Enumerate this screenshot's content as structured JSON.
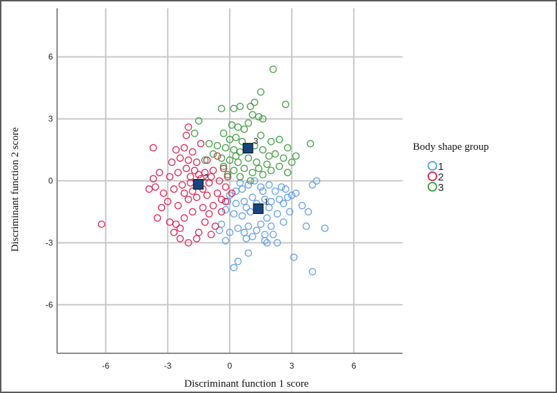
{
  "chart_data": {
    "type": "scatter",
    "xlabel": "Discriminant function 1 score",
    "ylabel": "Discriminant function 2 score",
    "xlim": [
      -8.35,
      8.35
    ],
    "ylim": [
      -8.35,
      8.35
    ],
    "xticks": [
      -6,
      -3,
      0,
      3,
      6
    ],
    "yticks": [
      -6,
      -3,
      0,
      3,
      6
    ],
    "grid": true,
    "legend": {
      "title": "Body shape group",
      "placement": "right"
    },
    "series": [
      {
        "name": "1",
        "color": "#5b9be8",
        "marker": "open-circle",
        "points": [
          [
            4.0,
            -4.4
          ],
          [
            0.2,
            -4.2
          ],
          [
            0.4,
            -3.9
          ],
          [
            3.1,
            -3.7
          ],
          [
            0.9,
            -3.5
          ],
          [
            4.6,
            -2.3
          ],
          [
            3.8,
            -1.5
          ],
          [
            4.2,
            0.0
          ],
          [
            4.0,
            -0.2
          ],
          [
            3.2,
            -0.6
          ],
          [
            3.0,
            -0.7
          ],
          [
            2.7,
            -0.4
          ],
          [
            2.5,
            -0.3
          ],
          [
            2.2,
            -0.5
          ],
          [
            1.9,
            -0.2
          ],
          [
            1.5,
            -0.3
          ],
          [
            1.2,
            0.0
          ],
          [
            0.9,
            -0.2
          ],
          [
            0.6,
            -0.4
          ],
          [
            0.3,
            -0.5
          ],
          [
            0.0,
            -0.7
          ],
          [
            2.6,
            -1.1
          ],
          [
            2.4,
            -0.9
          ],
          [
            2.0,
            -1.0
          ],
          [
            1.7,
            -0.9
          ],
          [
            1.1,
            -0.8
          ],
          [
            0.7,
            -1.0
          ],
          [
            0.3,
            -1.1
          ],
          [
            -0.1,
            -1.0
          ],
          [
            3.5,
            -1.2
          ],
          [
            2.9,
            -1.5
          ],
          [
            2.3,
            -1.6
          ],
          [
            1.8,
            -1.8
          ],
          [
            1.0,
            -1.5
          ],
          [
            0.6,
            -1.7
          ],
          [
            0.2,
            -1.6
          ],
          [
            -0.2,
            -1.4
          ],
          [
            2.6,
            -2.0
          ],
          [
            2.0,
            -2.2
          ],
          [
            1.5,
            -2.1
          ],
          [
            0.9,
            -2.2
          ],
          [
            0.4,
            -2.3
          ],
          [
            -0.4,
            -2.1
          ],
          [
            2.1,
            -2.6
          ],
          [
            1.7,
            -2.6
          ],
          [
            1.1,
            -2.7
          ],
          [
            0.7,
            -2.5
          ],
          [
            0.0,
            -2.5
          ],
          [
            2.3,
            -3.0
          ],
          [
            1.8,
            -3.0
          ],
          [
            1.7,
            -2.9
          ],
          [
            0.8,
            -2.8
          ],
          [
            -0.2,
            -2.9
          ],
          [
            1.3,
            -2.4
          ],
          [
            1.6,
            -0.5
          ],
          [
            2.8,
            -0.8
          ],
          [
            0.5,
            -0.1
          ],
          [
            1.3,
            -1.1
          ],
          [
            1.9,
            -1.3
          ],
          [
            0.8,
            -1.3
          ],
          [
            3.7,
            -2.2
          ],
          [
            -0.5,
            -2.4
          ]
        ],
        "centroid": [
          1.38,
          -1.35
        ]
      },
      {
        "name": "2",
        "color": "#e0194a",
        "marker": "open-circle",
        "points": [
          [
            -6.2,
            -2.1
          ],
          [
            -3.7,
            1.6
          ],
          [
            -3.4,
            0.4
          ],
          [
            -3.6,
            -0.3
          ],
          [
            -3.9,
            -0.4
          ],
          [
            -3.2,
            -0.6
          ],
          [
            -3.0,
            -1.0
          ],
          [
            -3.3,
            -1.3
          ],
          [
            -2.9,
            -2.0
          ],
          [
            -3.5,
            -1.8
          ],
          [
            -2.7,
            -2.5
          ],
          [
            -2.4,
            -2.8
          ],
          [
            -2.0,
            -3.0
          ],
          [
            -1.5,
            -2.5
          ],
          [
            -0.9,
            -2.6
          ],
          [
            -0.7,
            -2.2
          ],
          [
            -1.2,
            -2.0
          ],
          [
            -2.2,
            -1.8
          ],
          [
            -1.8,
            -1.5
          ],
          [
            -1.3,
            -1.3
          ],
          [
            -0.8,
            -1.2
          ],
          [
            -0.4,
            -1.5
          ],
          [
            -2.5,
            -1.2
          ],
          [
            -2.0,
            -0.9
          ],
          [
            -1.6,
            -0.8
          ],
          [
            -1.1,
            -0.7
          ],
          [
            -0.6,
            -0.6
          ],
          [
            -0.2,
            -0.3
          ],
          [
            -2.7,
            -0.4
          ],
          [
            -2.3,
            -0.2
          ],
          [
            -1.9,
            -0.1
          ],
          [
            -1.4,
            0.1
          ],
          [
            -1.0,
            -0.1
          ],
          [
            -0.5,
            0.0
          ],
          [
            -0.1,
            0.2
          ],
          [
            -2.9,
            0.2
          ],
          [
            -2.5,
            0.4
          ],
          [
            -2.1,
            0.6
          ],
          [
            -1.7,
            0.5
          ],
          [
            -1.2,
            0.4
          ],
          [
            -0.8,
            0.5
          ],
          [
            -0.3,
            0.6
          ],
          [
            -2.8,
            0.9
          ],
          [
            -2.4,
            1.1
          ],
          [
            -2.0,
            1.0
          ],
          [
            -1.6,
            0.9
          ],
          [
            -1.1,
            1.0
          ],
          [
            -0.6,
            1.2
          ],
          [
            -2.6,
            1.5
          ],
          [
            -2.2,
            1.6
          ],
          [
            -1.8,
            1.4
          ],
          [
            -1.4,
            1.8
          ],
          [
            -2.1,
            2.2
          ],
          [
            -2.0,
            2.6
          ],
          [
            -1.3,
            -0.4
          ],
          [
            -1.8,
            -0.5
          ],
          [
            -2.2,
            -0.6
          ],
          [
            -0.9,
            0.2
          ],
          [
            -1.5,
            0.3
          ],
          [
            -1.9,
            0.2
          ],
          [
            -0.4,
            -0.9
          ],
          [
            -1.0,
            -1.6
          ],
          [
            -2.6,
            -2.1
          ],
          [
            -3.7,
            0.1
          ],
          [
            -2.4,
            -2.3
          ],
          [
            -0.2,
            -1.0
          ],
          [
            -1.6,
            -2.8
          ],
          [
            0.1,
            -0.6
          ]
        ],
        "centroid": [
          -1.52,
          -0.17
        ]
      },
      {
        "name": "3",
        "color": "#3a9a3a",
        "marker": "open-circle",
        "points": [
          [
            2.1,
            5.4
          ],
          [
            1.5,
            4.3
          ],
          [
            2.7,
            3.7
          ],
          [
            1.2,
            3.8
          ],
          [
            1.0,
            3.6
          ],
          [
            -0.4,
            3.5
          ],
          [
            0.2,
            3.5
          ],
          [
            0.5,
            3.6
          ],
          [
            1.1,
            3.2
          ],
          [
            1.4,
            3.1
          ],
          [
            1.6,
            3.0
          ],
          [
            -1.5,
            2.9
          ],
          [
            0.1,
            2.7
          ],
          [
            0.4,
            2.6
          ],
          [
            0.7,
            2.5
          ],
          [
            -0.3,
            2.3
          ],
          [
            0.0,
            2.0
          ],
          [
            0.3,
            2.1
          ],
          [
            1.5,
            2.2
          ],
          [
            2.0,
            1.9
          ],
          [
            2.4,
            2.0
          ],
          [
            2.8,
            1.6
          ],
          [
            3.9,
            1.8
          ],
          [
            -1.0,
            1.8
          ],
          [
            -0.6,
            1.7
          ],
          [
            -0.2,
            1.6
          ],
          [
            0.2,
            1.5
          ],
          [
            0.5,
            1.4
          ],
          [
            1.2,
            1.7
          ],
          [
            1.6,
            1.5
          ],
          [
            2.2,
            1.3
          ],
          [
            2.6,
            1.1
          ],
          [
            3.2,
            1.2
          ],
          [
            -0.8,
            1.3
          ],
          [
            -0.4,
            1.1
          ],
          [
            0.0,
            1.0
          ],
          [
            0.4,
            0.9
          ],
          [
            0.9,
            1.1
          ],
          [
            1.3,
            0.9
          ],
          [
            1.8,
            0.8
          ],
          [
            2.4,
            0.7
          ],
          [
            3.0,
            0.9
          ],
          [
            -0.3,
            0.7
          ],
          [
            0.2,
            0.5
          ],
          [
            0.7,
            0.6
          ],
          [
            1.1,
            0.4
          ],
          [
            1.6,
            0.3
          ],
          [
            2.0,
            0.5
          ],
          [
            0.5,
            0.2
          ],
          [
            1.0,
            0.0
          ],
          [
            -1.2,
            1.0
          ],
          [
            -1.7,
            2.3
          ],
          [
            0.6,
            1.9
          ],
          [
            0.9,
            2.8
          ],
          [
            1.9,
            1.2
          ],
          [
            2.8,
            0.4
          ],
          [
            1.4,
            0.6
          ],
          [
            -0.1,
            0.3
          ],
          [
            0.3,
            1.2
          ],
          [
            0.8,
            1.6
          ]
        ],
        "centroid": [
          0.88,
          1.58
        ]
      }
    ],
    "centroid_style": {
      "marker": "filled-square",
      "color": "#17467e"
    }
  }
}
